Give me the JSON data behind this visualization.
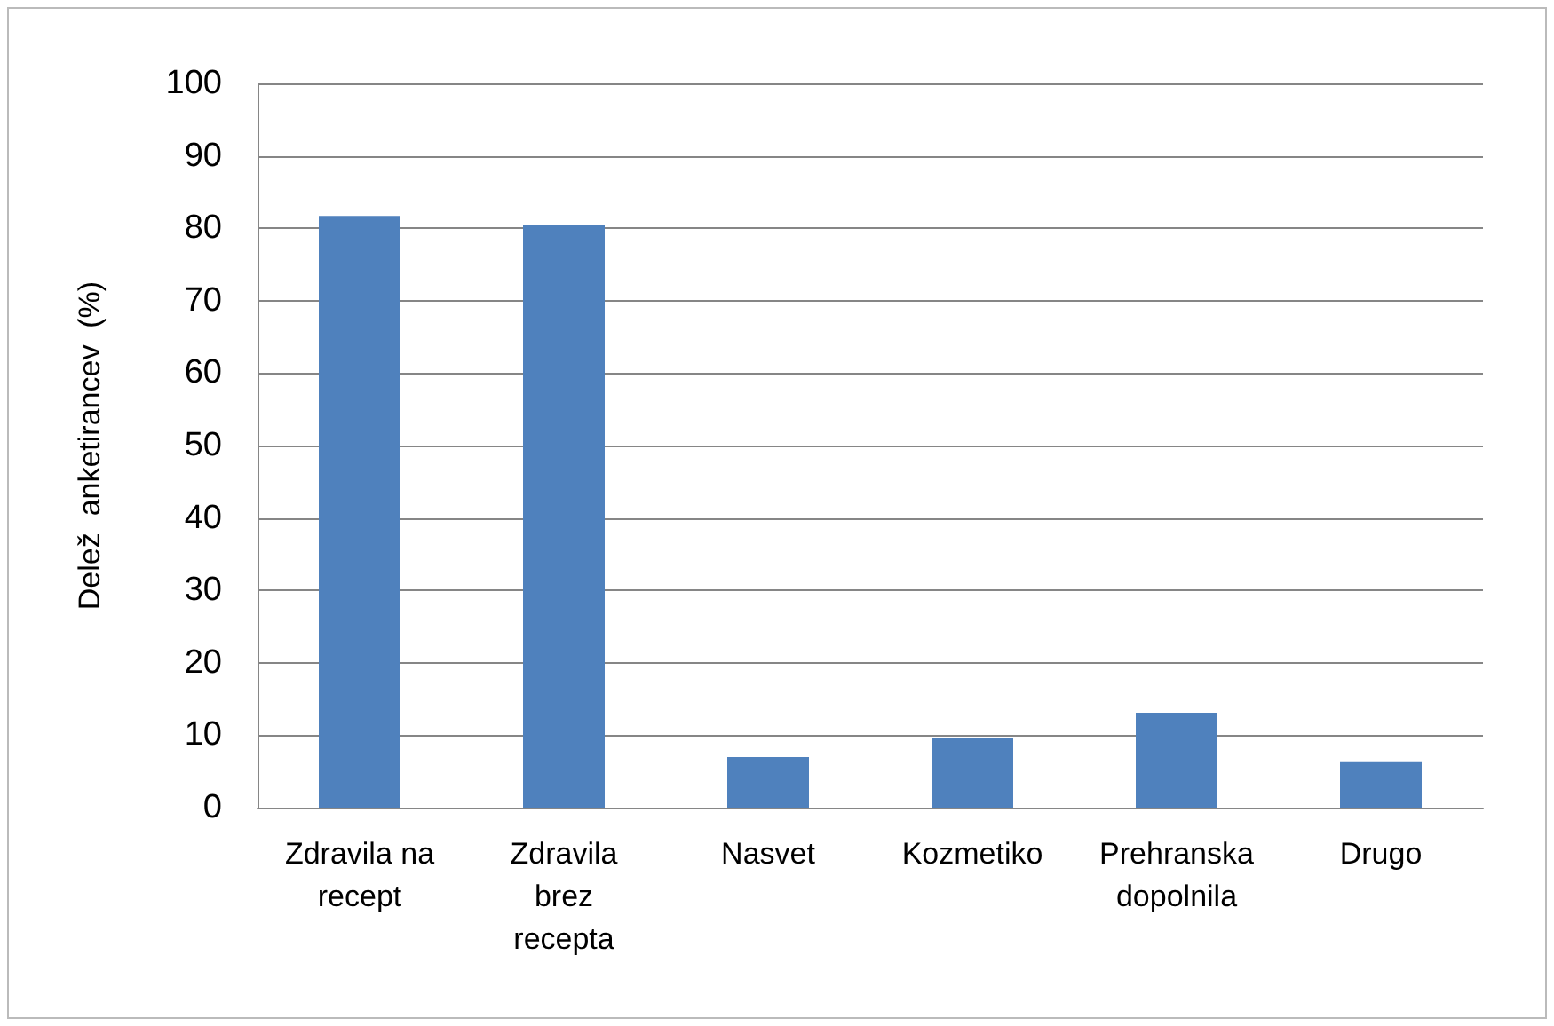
{
  "chart_data": {
    "type": "bar",
    "ylabel": "Delež  anketirancev  (%)",
    "categories": [
      "Zdravila na\nrecept",
      "Zdravila\nbrez\nrecepta",
      "Nasvet",
      "Kozmetiko",
      "Prehranska\ndopolnila",
      "Drugo"
    ],
    "values": [
      81.7,
      80.5,
      7.0,
      9.6,
      13.1,
      6.4
    ],
    "color": "#4f81bd",
    "ylim": [
      0,
      100
    ],
    "yticks": [
      0,
      10,
      20,
      30,
      40,
      50,
      60,
      70,
      80,
      90,
      100
    ],
    "grid": "y"
  }
}
